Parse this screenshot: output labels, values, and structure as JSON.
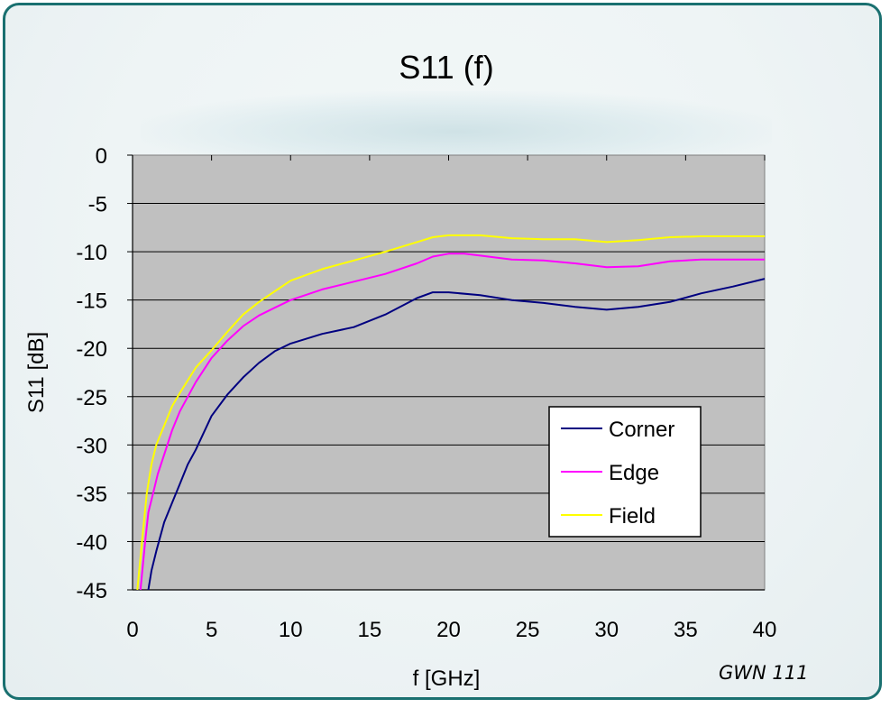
{
  "chart_data": {
    "type": "line",
    "title": "S11 (f)",
    "xlabel": "f [GHz]",
    "ylabel": "S11 [dB]",
    "xlim": [
      0,
      40
    ],
    "ylim": [
      -45,
      0
    ],
    "xticks": [
      0,
      5,
      10,
      15,
      20,
      25,
      30,
      35,
      40
    ],
    "yticks": [
      0,
      -5,
      -10,
      -15,
      -20,
      -25,
      -30,
      -35,
      -40,
      -45
    ],
    "grid": "horizontal",
    "legend_position": "lower-right",
    "plot_background": "#c0c0c0",
    "series": [
      {
        "name": "Corner",
        "color": "#000080",
        "x": [
          1,
          1.2,
          1.5,
          2,
          2.5,
          3,
          3.5,
          4,
          5,
          6,
          7,
          8,
          9,
          10,
          12,
          14,
          16,
          18,
          19,
          20,
          22,
          24,
          26,
          28,
          30,
          32,
          34,
          36,
          38,
          40
        ],
        "y": [
          -45,
          -43,
          -41,
          -38,
          -36,
          -34,
          -32,
          -30.5,
          -27,
          -24.8,
          -23,
          -21.5,
          -20.3,
          -19.5,
          -18.5,
          -17.8,
          -16.5,
          -14.8,
          -14.2,
          -14.2,
          -14.5,
          -15.0,
          -15.3,
          -15.7,
          -16.0,
          -15.7,
          -15.2,
          -14.3,
          -13.6,
          -12.8
        ]
      },
      {
        "name": "Edge",
        "color": "#ff00ff",
        "x": [
          0.5,
          0.8,
          1,
          1.3,
          1.6,
          2,
          2.5,
          3,
          3.5,
          4,
          5,
          6,
          7,
          8,
          9,
          10,
          12,
          14,
          16,
          18,
          19,
          20,
          21,
          22,
          24,
          26,
          28,
          30,
          32,
          34,
          36,
          38,
          40
        ],
        "y": [
          -45,
          -40,
          -37,
          -35,
          -33,
          -31,
          -28.5,
          -26.5,
          -25,
          -23.5,
          -21,
          -19.2,
          -17.7,
          -16.6,
          -15.8,
          -15.0,
          -13.9,
          -13.1,
          -12.3,
          -11.2,
          -10.5,
          -10.2,
          -10.2,
          -10.4,
          -10.8,
          -10.9,
          -11.2,
          -11.6,
          -11.5,
          -11.0,
          -10.8,
          -10.8,
          -10.8
        ]
      },
      {
        "name": "Field",
        "color": "#ffff00",
        "x": [
          0.3,
          0.6,
          0.9,
          1.2,
          1.5,
          2,
          2.5,
          3,
          3.5,
          4,
          5,
          6,
          7,
          8,
          9,
          10,
          12,
          14,
          16,
          18,
          19,
          20,
          22,
          24,
          26,
          28,
          30,
          32,
          34,
          36,
          38,
          40
        ],
        "y": [
          -45,
          -40,
          -35,
          -32,
          -30,
          -28,
          -26,
          -24.6,
          -23.3,
          -22,
          -20.2,
          -18.3,
          -16.5,
          -15.2,
          -14.1,
          -13.0,
          -11.8,
          -10.9,
          -10.0,
          -9.0,
          -8.5,
          -8.3,
          -8.3,
          -8.6,
          -8.7,
          -8.7,
          -9.0,
          -8.8,
          -8.5,
          -8.4,
          -8.4,
          -8.4
        ]
      }
    ],
    "annotation": "GWN 111"
  }
}
